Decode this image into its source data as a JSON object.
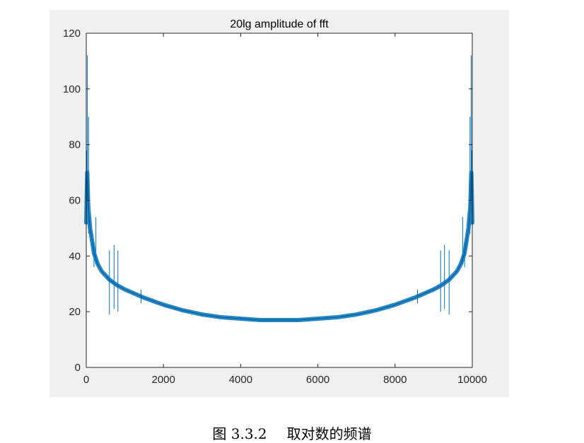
{
  "figure": {
    "caption_number": "图 3.3.2",
    "caption_text": "取对数的频谱"
  },
  "chart_data": {
    "type": "line",
    "title": "20lg amplitude of fft",
    "xlabel": "",
    "ylabel": "",
    "xlim": [
      0,
      10000
    ],
    "ylim": [
      0,
      120
    ],
    "xticks": [
      0,
      2000,
      4000,
      6000,
      8000,
      10000
    ],
    "yticks": [
      0,
      20,
      40,
      60,
      80,
      100,
      120
    ],
    "grid": false,
    "line_color": "#0072bd",
    "series": [
      {
        "x": [
          0,
          25,
          50,
          100,
          200,
          300,
          400,
          600,
          800,
          1000,
          1500,
          2000,
          2500,
          3000,
          3500,
          4000,
          4500,
          5000,
          5500,
          6000,
          6500,
          7000,
          7500,
          8000,
          8500,
          9000,
          9200,
          9400,
          9600,
          9700,
          9800,
          9900,
          9950,
          9975,
          10000
        ],
        "values": [
          52,
          70,
          58,
          50,
          41,
          37,
          34.5,
          31.5,
          29.5,
          28,
          25,
          22.5,
          20.5,
          19,
          18,
          17.5,
          17,
          17,
          17,
          17.5,
          18,
          19,
          20.5,
          22.5,
          25,
          28,
          29.5,
          31.5,
          34.5,
          37,
          41,
          50,
          58,
          70,
          52
        ]
      }
    ],
    "spikes": [
      {
        "x": 10,
        "top": 78,
        "bottom": 55
      },
      {
        "x": 30,
        "top": 112,
        "bottom": 60
      },
      {
        "x": 60,
        "top": 90,
        "bottom": 48
      },
      {
        "x": 200,
        "top": 45,
        "bottom": 36
      },
      {
        "x": 250,
        "top": 54,
        "bottom": 37
      },
      {
        "x": 600,
        "top": 42,
        "bottom": 19
      },
      {
        "x": 720,
        "top": 44,
        "bottom": 21
      },
      {
        "x": 820,
        "top": 42,
        "bottom": 20
      },
      {
        "x": 1420,
        "top": 28,
        "bottom": 23
      },
      {
        "x": 8580,
        "top": 28,
        "bottom": 23
      },
      {
        "x": 9180,
        "top": 42,
        "bottom": 20
      },
      {
        "x": 9280,
        "top": 44,
        "bottom": 21
      },
      {
        "x": 9400,
        "top": 42,
        "bottom": 19
      },
      {
        "x": 9750,
        "top": 54,
        "bottom": 37
      },
      {
        "x": 9800,
        "top": 45,
        "bottom": 36
      },
      {
        "x": 9940,
        "top": 90,
        "bottom": 48
      },
      {
        "x": 9970,
        "top": 112,
        "bottom": 60
      },
      {
        "x": 9990,
        "top": 78,
        "bottom": 55
      }
    ]
  }
}
